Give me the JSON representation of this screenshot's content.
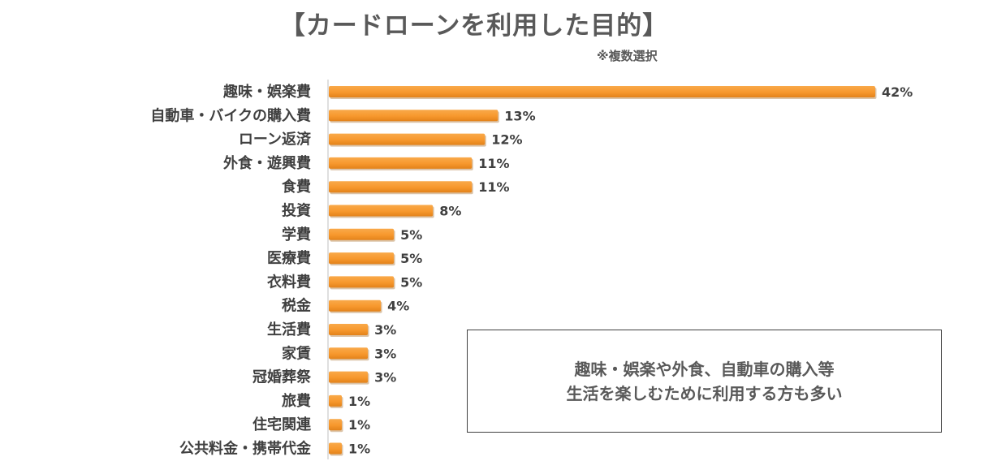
{
  "chart_data": {
    "type": "bar",
    "orientation": "horizontal",
    "title": "【カードローンを利用した目的】",
    "subtitle": "※複数選択",
    "categories": [
      "趣味・娯楽費",
      "自動車・バイクの購入費",
      "ローン返済",
      "外食・遊興費",
      "食費",
      "投資",
      "学費",
      "医療費",
      "衣料費",
      "税金",
      "生活費",
      "家賃",
      "冠婚葬祭",
      "旅費",
      "住宅関連",
      "公共料金・携帯代金"
    ],
    "values": [
      42,
      13,
      12,
      11,
      11,
      8,
      5,
      5,
      5,
      4,
      3,
      3,
      3,
      1,
      1,
      1
    ],
    "value_labels": [
      "42%",
      "13%",
      "12%",
      "11%",
      "11%",
      "8%",
      "5%",
      "5%",
      "5%",
      "4%",
      "3%",
      "3%",
      "3%",
      "1%",
      "1%",
      "1%"
    ],
    "xlim": [
      0,
      42
    ],
    "unit": "%",
    "bar_color": "#F7982D",
    "bar_shadow_color": "#B07A3C",
    "grid": false
  },
  "note": {
    "lines": [
      "趣味・娯楽や外食、自動車の購入等",
      "生活を楽しむために利用する方も多い"
    ]
  }
}
